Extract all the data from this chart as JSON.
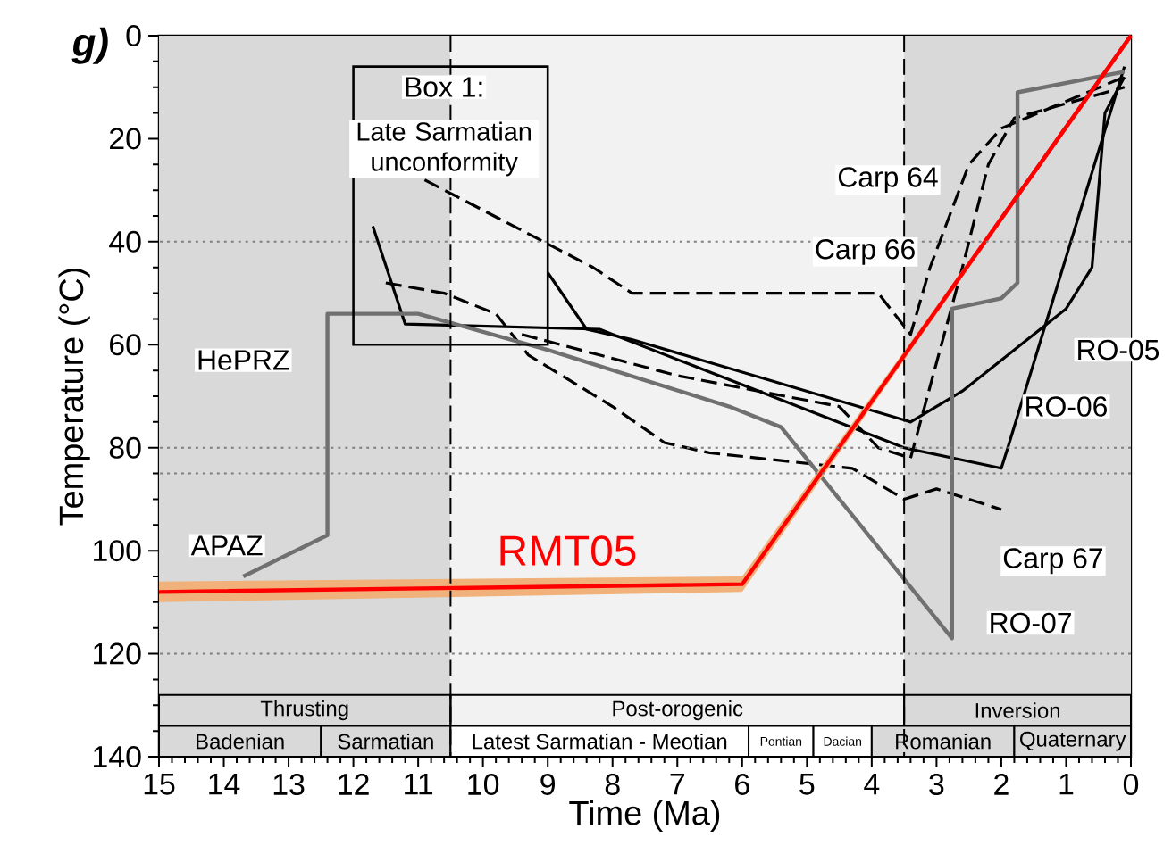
{
  "chart_data": {
    "type": "line",
    "title": "g)",
    "xlabel": "Time (Ma)",
    "ylabel": "Temperature (°C)",
    "xlim": [
      15,
      0
    ],
    "xticks": [
      15,
      14,
      13,
      12,
      11,
      10,
      9,
      8,
      7,
      6,
      5,
      4,
      3,
      2,
      1,
      0
    ],
    "ylim": [
      140,
      0
    ],
    "yticks": [
      0,
      20,
      40,
      60,
      80,
      100,
      120,
      140
    ],
    "series": [
      {
        "color": "#000000",
        "line_style": "dashed",
        "x": [
          10.9,
          8.3,
          7.7,
          3.9,
          3.4,
          3.1,
          2.8,
          2.5,
          2.0,
          0.1
        ],
        "values": [
          28,
          45,
          50,
          50,
          58,
          45,
          35,
          25,
          18,
          8
        ]
      },
      {
        "color": "#000000",
        "line_style": "solid",
        "x": [
          11.7,
          11.2,
          8.2,
          3.5,
          2.0,
          1.9,
          0.1
        ],
        "values": [
          37,
          56,
          57,
          80,
          84,
          80,
          6
        ]
      },
      {
        "color": "#000000",
        "line_style": "solid",
        "x": [
          9.0,
          8.4,
          7.7,
          3.4,
          2.6,
          1.0,
          0.6,
          0.4,
          0.1
        ],
        "values": [
          46,
          57,
          59,
          75,
          69,
          53,
          45,
          15,
          8
        ]
      },
      {
        "color": "#000000",
        "line_style": "dashed",
        "x": [
          11.5,
          10.6,
          9.8,
          9.3,
          8.0,
          7.2,
          6.5,
          4.3,
          3.5,
          3.0,
          2.0
        ],
        "values": [
          48,
          50,
          54,
          62,
          72,
          79,
          81,
          84,
          90,
          88,
          92
        ]
      },
      {
        "color": "#000000",
        "line_style": "dashed",
        "x": [
          9.4,
          7.0,
          4.5,
          3.9,
          3.4,
          2.6,
          2.2,
          1.8,
          0.1
        ],
        "values": [
          58,
          66,
          72,
          80,
          82,
          45,
          25,
          16,
          10
        ]
      },
      {
        "color": "#707070",
        "line_style": "solid",
        "x": [
          13.7,
          12.4,
          12.4,
          11.0,
          9.0,
          6.2,
          5.4,
          2.76,
          2.76,
          2.0,
          1.75,
          1.75,
          0.1
        ],
        "values": [
          105,
          97,
          54,
          54,
          61,
          72,
          76,
          117,
          53,
          51,
          48,
          11,
          7
        ]
      },
      {
        "name": "RMT05",
        "color": "#ff0000",
        "line_style": "solid",
        "x": [
          15,
          6,
          0
        ],
        "values": [
          108,
          106.5,
          0
        ],
        "lower": [
          110,
          108,
          0
        ],
        "upper": [
          106,
          105,
          0
        ]
      }
    ],
    "ref_lines": [
      {
        "axis": "y",
        "value": 40,
        "color": "#808080",
        "line_style": "dotted"
      },
      {
        "axis": "y",
        "value": 80,
        "color": "#808080",
        "line_style": "dotted"
      },
      {
        "axis": "y",
        "value": 85,
        "color": "#808080",
        "line_style": "dotted"
      },
      {
        "axis": "y",
        "value": 120,
        "color": "#808080",
        "line_style": "dotted"
      },
      {
        "axis": "x",
        "value": 10.5,
        "color": "#000000",
        "line_style": "dashed"
      },
      {
        "axis": "x",
        "value": 3.5,
        "color": "#000000",
        "line_style": "dashed"
      }
    ],
    "bands": [
      {
        "axis": "x",
        "from": 15,
        "to": 10.5,
        "label": "Thrusting",
        "color": "#d9d9d9"
      },
      {
        "axis": "x",
        "from": 10.5,
        "to": 3.5,
        "label": "Post-orogenic",
        "color": "#f2f2f2"
      },
      {
        "axis": "x",
        "from": 3.5,
        "to": 0,
        "label": "Inversion",
        "color": "#d9d9d9"
      },
      {
        "axis": "x",
        "from": 15,
        "to": 12.5,
        "label": "Badenian",
        "color": "#d9d9d9"
      },
      {
        "axis": "x",
        "from": 12.5,
        "to": 10.5,
        "label": "Sarmatian",
        "color": "#d9d9d9"
      },
      {
        "axis": "x",
        "from": 10.5,
        "to": 5.9,
        "label": "Latest Sarmatian - Meotian",
        "color": "#ffffff"
      },
      {
        "axis": "x",
        "from": 5.9,
        "to": 4.9,
        "label": "Pontian",
        "color": "#ffffff"
      },
      {
        "axis": "x",
        "from": 4.9,
        "to": 4.0,
        "label": "Dacian",
        "color": "#ffffff"
      },
      {
        "axis": "x",
        "from": 4.0,
        "to": 1.8,
        "label": "Romanian",
        "color": "#d9d9d9"
      },
      {
        "axis": "x",
        "from": 1.8,
        "to": 0,
        "label": "Quaternary",
        "color": "#d9d9d9"
      }
    ],
    "annotations": [
      "Box 1:",
      "Late Sarmatian unconformity",
      "Carp 64",
      "Carp 66",
      "RO-05",
      "RO-06",
      "Carp 67",
      "RO-07",
      "HePRZ",
      "APAZ"
    ]
  }
}
